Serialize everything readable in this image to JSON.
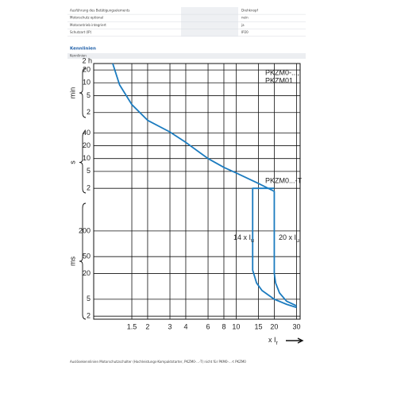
{
  "table": {
    "rows": [
      [
        "Ausführung des Betätigungselements",
        "Drehknopf"
      ],
      [
        "Motorschutz optional",
        "nein"
      ],
      [
        "Motorantrieb integriert",
        "ja"
      ],
      [
        "Schutzart (IP)",
        "IP20"
      ]
    ]
  },
  "section": {
    "title": "Kennlinien",
    "subtitle": "Kennlinien"
  },
  "chart_data": {
    "type": "line",
    "x_label": {
      "text": "x I",
      "sub": "r"
    },
    "y_top_label": "2 h",
    "y_groups": [
      "min",
      "s",
      "ms"
    ],
    "xlim": [
      0.75,
      32
    ],
    "ylim": [
      0.0017,
      1700
    ],
    "xlog": true,
    "ylog": true,
    "grid": true,
    "xticks": [
      1.5,
      2,
      3,
      4,
      6,
      8,
      10,
      15,
      20,
      30
    ],
    "yticks": [
      {
        "value": 1200,
        "label": "20"
      },
      {
        "value": 600,
        "label": "10"
      },
      {
        "value": 300,
        "label": "5"
      },
      {
        "value": 120,
        "label": "2"
      },
      40,
      20,
      10,
      5,
      2,
      {
        "value": 0.2,
        "label": "200"
      },
      {
        "value": 0.05,
        "label": "50"
      },
      {
        "value": 0.02,
        "label": "20"
      },
      {
        "value": 0.005,
        "label": "5"
      },
      {
        "value": 0.002,
        "label": "2"
      }
    ],
    "series": [
      {
        "labels": [
          "PKZM0-...,",
          "PKZM01"
        ],
        "color": "#1b7bbf",
        "x": [
          1.06,
          1.2,
          1.5,
          2,
          3,
          4,
          6,
          8,
          10,
          15,
          20,
          20,
          20.5,
          22,
          25,
          30
        ],
        "values": [
          1700,
          540,
          185,
          79,
          42,
          24,
          10,
          6.2,
          4.6,
          2.6,
          1.7,
          0.02,
          0.012,
          0.007,
          0.0045,
          0.0035
        ]
      },
      {
        "labels": [
          "PKZM0...-T"
        ],
        "color": "#1b7bbf",
        "x": [
          20,
          13.5,
          13.5,
          14.5,
          16,
          20,
          25,
          30
        ],
        "values": [
          2,
          2,
          0.024,
          0.012,
          0.008,
          0.005,
          0.0038,
          0.0032
        ]
      }
    ],
    "annotations": [
      {
        "text": "14 x I",
        "sub": "u"
      },
      {
        "text": "20 x I",
        "sub": "u"
      }
    ]
  },
  "footer": "Auslösekennlinien Motorschutzschalter (Hochleistungs-Kompaktstarter, PKZM0-...-T) nicht für PKM0-...-t PKZM0"
}
